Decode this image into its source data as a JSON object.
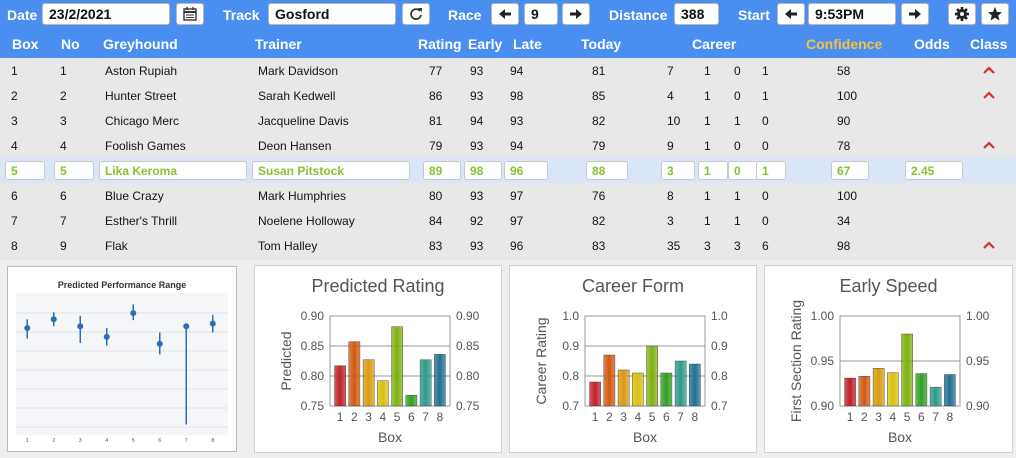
{
  "toolbar": {
    "date_label": "Date",
    "date_value": "23/2/2021",
    "track_label": "Track",
    "track_value": "Gosford",
    "race_label": "Race",
    "race_value": "9",
    "distance_label": "Distance",
    "distance_value": "388",
    "start_label": "Start",
    "start_value": "9:53PM",
    "icons": [
      "calendar-icon",
      "refresh-icon",
      "arrow-left-icon",
      "arrow-right-icon",
      "gear-icon",
      "star-icon"
    ]
  },
  "table": {
    "headers": {
      "box": "Box",
      "no": "No",
      "greyhound": "Greyhound",
      "trainer": "Trainer",
      "rating": "Rating",
      "early": "Early",
      "late": "Late",
      "today": "Today",
      "career": "Career",
      "confidence": "Confidence",
      "odds": "Odds",
      "class": "Class"
    },
    "confidence_color": "#f5c242",
    "selected_color": "#86c232",
    "class_icon_color": "#d93025",
    "rows": [
      {
        "box": "1",
        "no": "1",
        "greyhound": "Aston Rupiah",
        "trainer": "Mark Davidson",
        "rating": "77",
        "early": "93",
        "late": "94",
        "today": "81",
        "c1": "7",
        "c2": "1",
        "c3": "0",
        "c4": "1",
        "confidence": "58",
        "odds": "",
        "class_up": true
      },
      {
        "box": "2",
        "no": "2",
        "greyhound": "Hunter Street",
        "trainer": "Sarah Kedwell",
        "rating": "86",
        "early": "93",
        "late": "98",
        "today": "85",
        "c1": "4",
        "c2": "1",
        "c3": "0",
        "c4": "1",
        "confidence": "100",
        "odds": "",
        "class_up": true
      },
      {
        "box": "3",
        "no": "3",
        "greyhound": "Chicago Merc",
        "trainer": "Jacqueline Davis",
        "rating": "81",
        "early": "94",
        "late": "93",
        "today": "82",
        "c1": "10",
        "c2": "1",
        "c3": "1",
        "c4": "0",
        "confidence": "90",
        "odds": "",
        "class_up": false
      },
      {
        "box": "4",
        "no": "4",
        "greyhound": "Foolish Games",
        "trainer": "Deon Hansen",
        "rating": "79",
        "early": "93",
        "late": "94",
        "today": "79",
        "c1": "9",
        "c2": "1",
        "c3": "0",
        "c4": "0",
        "confidence": "78",
        "odds": "",
        "class_up": true
      },
      {
        "box": "5",
        "no": "5",
        "greyhound": "Lika Keroma",
        "trainer": "Susan Pitstock",
        "rating": "89",
        "early": "98",
        "late": "96",
        "today": "88",
        "c1": "3",
        "c2": "1",
        "c3": "0",
        "c4": "1",
        "confidence": "67",
        "odds": "2.45",
        "class_up": false,
        "selected": true
      },
      {
        "box": "6",
        "no": "6",
        "greyhound": "Blue Crazy",
        "trainer": "Mark Humphries",
        "rating": "80",
        "early": "93",
        "late": "97",
        "today": "76",
        "c1": "8",
        "c2": "1",
        "c3": "1",
        "c4": "0",
        "confidence": "100",
        "odds": "",
        "class_up": false
      },
      {
        "box": "7",
        "no": "7",
        "greyhound": "Esther's Thrill",
        "trainer": "Noelene Holloway",
        "rating": "84",
        "early": "92",
        "late": "97",
        "today": "82",
        "c1": "3",
        "c2": "1",
        "c3": "1",
        "c4": "0",
        "confidence": "34",
        "odds": "",
        "class_up": false
      },
      {
        "box": "8",
        "no": "9",
        "greyhound": "Flak",
        "trainer": "Tom Halley",
        "rating": "83",
        "early": "93",
        "late": "96",
        "today": "83",
        "c1": "35",
        "c2": "3",
        "c3": "3",
        "c4": "6",
        "confidence": "98",
        "odds": "",
        "class_up": true
      }
    ]
  },
  "chart_data": [
    {
      "type": "scatter",
      "title": "Predicted Performance Range",
      "x": [
        1,
        2,
        3,
        4,
        5,
        6,
        7,
        8
      ],
      "y": [
        0.5,
        0.6,
        0.52,
        0.4,
        0.67,
        0.32,
        0.52,
        0.55
      ],
      "y_low": [
        0.38,
        0.52,
        0.33,
        0.3,
        0.59,
        0.2,
        -0.6,
        0.45
      ],
      "y_high": [
        0.6,
        0.68,
        0.64,
        0.5,
        0.77,
        0.45,
        0.52,
        0.65
      ],
      "xlabel": "",
      "ylabel": ""
    },
    {
      "type": "bar",
      "title": "Predicted Rating",
      "categories": [
        "1",
        "2",
        "3",
        "4",
        "5",
        "6",
        "7",
        "8"
      ],
      "values": [
        0.817,
        0.857,
        0.827,
        0.792,
        0.882,
        0.768,
        0.827,
        0.836
      ],
      "xlabel": "Box",
      "ylabel": "Predicted",
      "ylim": [
        0.75,
        0.9
      ],
      "yticks": [
        "0.75",
        "0.80",
        "0.85",
        "0.90"
      ],
      "colors": [
        "#c0202a",
        "#d05a10",
        "#d89a10",
        "#d8c010",
        "#80b010",
        "#30a020",
        "#2a9a8a",
        "#207090"
      ]
    },
    {
      "type": "bar",
      "title": "Career Form",
      "categories": [
        "1",
        "2",
        "3",
        "4",
        "5",
        "6",
        "7",
        "8"
      ],
      "values": [
        0.78,
        0.87,
        0.82,
        0.81,
        0.9,
        0.81,
        0.85,
        0.84
      ],
      "xlabel": "Box",
      "ylabel": "Career Rating",
      "ylim": [
        0.7,
        1.0
      ],
      "yticks": [
        "0.7",
        "0.8",
        "0.9",
        "1.0"
      ],
      "colors": [
        "#c0202a",
        "#d05a10",
        "#d89a10",
        "#d8c010",
        "#80b010",
        "#30a020",
        "#2a9a8a",
        "#207090"
      ]
    },
    {
      "type": "bar",
      "title": "Early Speed",
      "categories": [
        "1",
        "2",
        "3",
        "4",
        "5",
        "6",
        "7",
        "8"
      ],
      "values": [
        0.931,
        0.933,
        0.942,
        0.937,
        0.98,
        0.936,
        0.921,
        0.935
      ],
      "xlabel": "Box",
      "ylabel": "First Section Rating",
      "ylim": [
        0.9,
        1.0
      ],
      "yticks": [
        "0.90",
        "0.95",
        "1.00"
      ],
      "colors": [
        "#c0202a",
        "#d05a10",
        "#d89a10",
        "#d8c010",
        "#80b010",
        "#30a020",
        "#2a9a8a",
        "#207090"
      ]
    }
  ]
}
